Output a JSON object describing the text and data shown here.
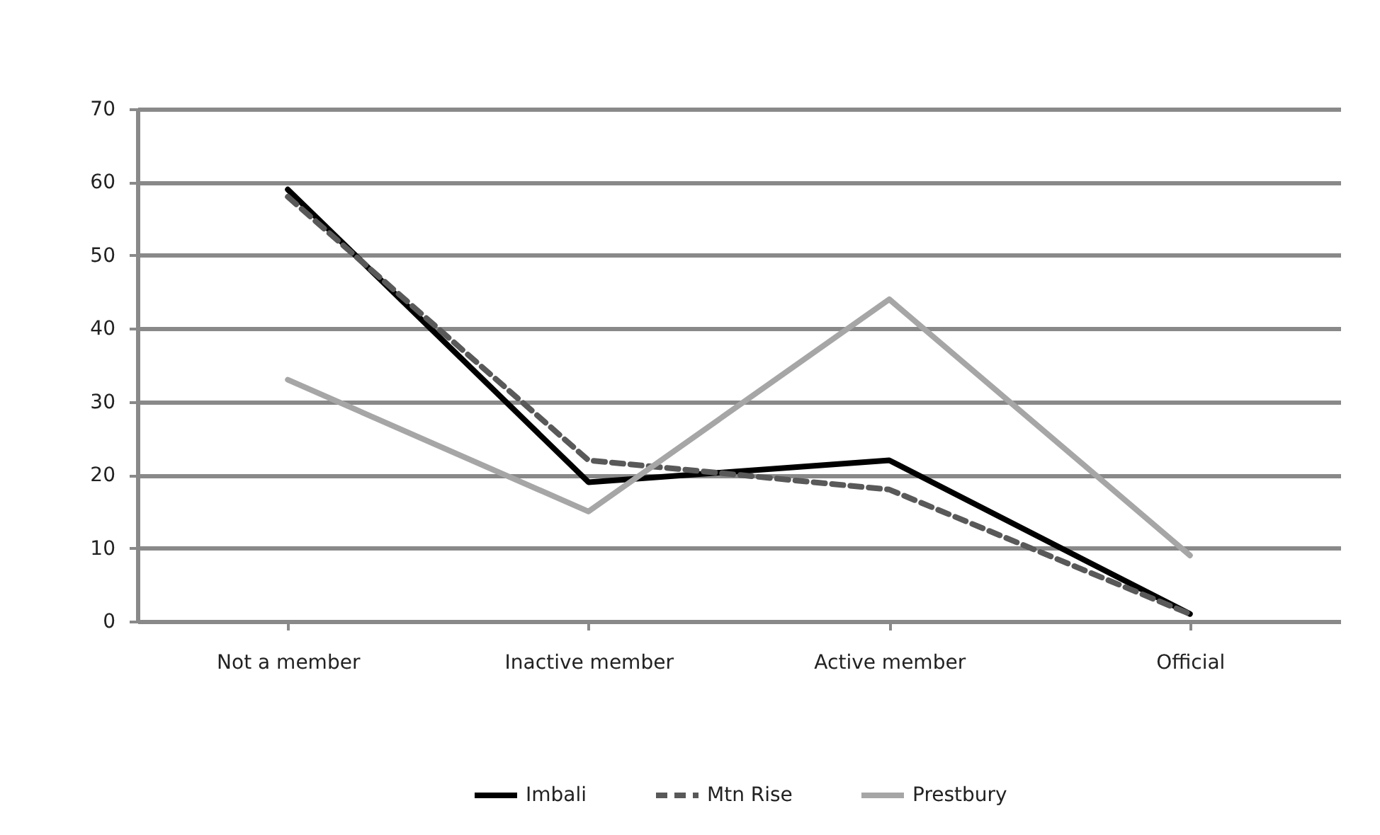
{
  "chart_data": {
    "type": "line",
    "categories": [
      "Not a member",
      "Inactive member",
      "Active member",
      "Official"
    ],
    "series": [
      {
        "name": "Imbali",
        "color": "#000000",
        "line_style": "solid",
        "values": [
          59,
          19,
          22,
          1
        ]
      },
      {
        "name": "Mtn Rise",
        "color": "#595959",
        "line_style": "dashed",
        "values": [
          58,
          22,
          18,
          1
        ]
      },
      {
        "name": "Prestbury",
        "color": "#a6a6a6",
        "line_style": "solid",
        "values": [
          33,
          15,
          44,
          9
        ]
      }
    ],
    "ylim": [
      0,
      70
    ],
    "yticks": [
      0,
      10,
      20,
      30,
      40,
      50,
      60,
      70
    ],
    "grid": "y",
    "legend": "bottom",
    "marker": "none"
  }
}
